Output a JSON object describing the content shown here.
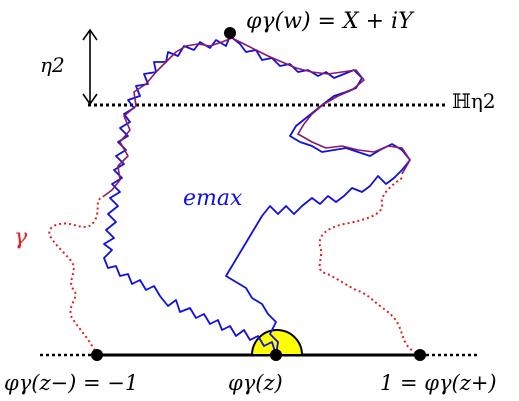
{
  "labels": {
    "top_point": "φγ(w) = X + iY",
    "eta": "η2",
    "halfplane": "ℍη2",
    "emax": "emax",
    "gamma": "γ",
    "left_point": "φγ(z−) = −1",
    "center_point": "φγ(z)",
    "right_point": "1 = φγ(z+)"
  },
  "colors": {
    "curve": "#1010e0",
    "boundary": "#8a1a6a",
    "gamma": "#e02020",
    "disk": "#ffff00",
    "black": "#000000"
  }
}
